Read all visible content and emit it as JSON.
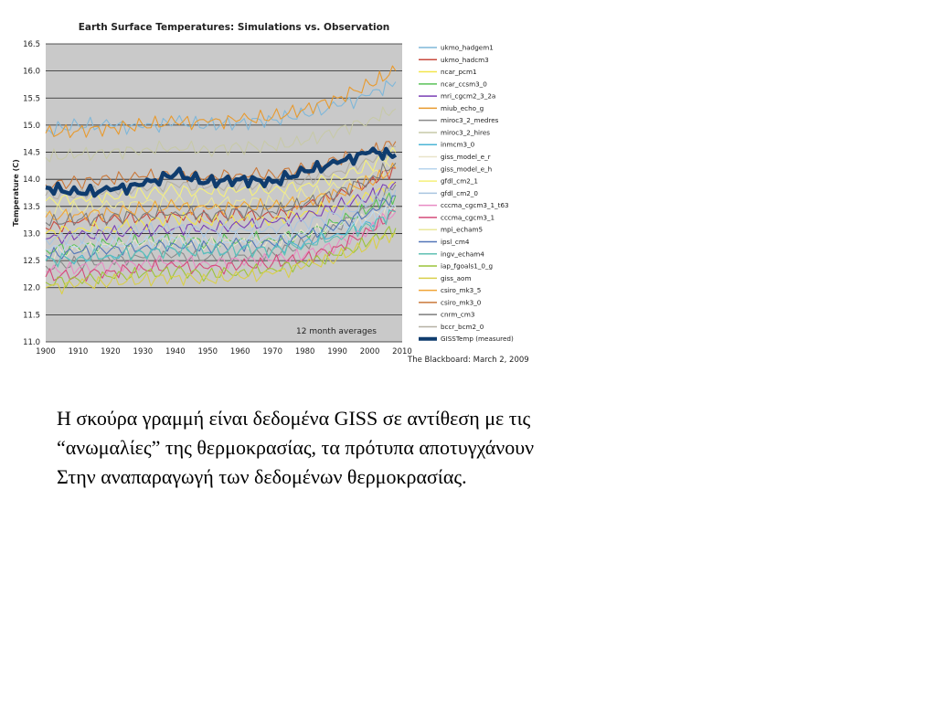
{
  "chart_data": {
    "type": "line",
    "title": "Earth Surface Temperatures: Simulations vs. Observation",
    "ylabel": "Temperature (C)",
    "xlabel": "",
    "ylim": [
      11.0,
      16.5
    ],
    "xlim": [
      1900,
      2010
    ],
    "x_ticks": [
      "1900",
      "1910",
      "1920",
      "1930",
      "1940",
      "1950",
      "1960",
      "1970",
      "1980",
      "1990",
      "2000",
      "2010"
    ],
    "y_ticks": [
      "11.0",
      "11.5",
      "12.0",
      "12.5",
      "13.0",
      "13.5",
      "14.0",
      "14.5",
      "15.0",
      "15.5",
      "16.0",
      "16.5"
    ],
    "x": [
      1900,
      1910,
      1920,
      1930,
      1940,
      1950,
      1960,
      1970,
      1980,
      1990,
      2000,
      2008
    ],
    "grid": true,
    "legend": "right",
    "annotation": "12 month averages",
    "source_note": "The Blackboard: March 2, 2009",
    "series": [
      {
        "name": "ukmo_hadgem1",
        "color": "#7fb7d9",
        "values": [
          14.9,
          15.0,
          15.0,
          14.95,
          15.05,
          15.0,
          15.05,
          15.1,
          15.2,
          15.35,
          15.55,
          15.8
        ]
      },
      {
        "name": "ukmo_hadcm3",
        "color": "#c84a3e",
        "values": [
          13.1,
          13.2,
          13.25,
          13.3,
          13.35,
          13.3,
          13.35,
          13.3,
          13.5,
          13.7,
          13.95,
          14.2
        ]
      },
      {
        "name": "ncar_pcm1",
        "color": "#f2e64a",
        "values": [
          13.0,
          13.1,
          13.1,
          13.2,
          13.3,
          13.2,
          13.25,
          13.25,
          13.4,
          13.5,
          13.7,
          13.9
        ]
      },
      {
        "name": "ncar_ccsm3_0",
        "color": "#59c257",
        "values": [
          12.7,
          12.75,
          12.8,
          12.85,
          12.9,
          12.85,
          12.9,
          12.9,
          13.0,
          13.2,
          13.45,
          13.7
        ]
      },
      {
        "name": "mri_cgcm2_3_2a",
        "color": "#7a3fb5",
        "values": [
          12.9,
          12.95,
          13.0,
          13.05,
          13.1,
          13.1,
          13.15,
          13.2,
          13.3,
          13.5,
          13.7,
          13.95
        ]
      },
      {
        "name": "miub_echo_g",
        "color": "#e89a2e",
        "values": [
          14.85,
          14.9,
          14.95,
          15.0,
          15.05,
          15.05,
          15.1,
          15.15,
          15.3,
          15.5,
          15.75,
          16.0
        ]
      },
      {
        "name": "miroc3_2_medres",
        "color": "#8a8a8a",
        "values": [
          12.4,
          12.45,
          12.5,
          12.55,
          12.6,
          12.55,
          12.6,
          12.65,
          12.8,
          13.1,
          13.5,
          13.9
        ]
      },
      {
        "name": "miroc3_2_hires",
        "color": "#c7c9a8",
        "values": [
          14.4,
          14.45,
          14.5,
          14.55,
          14.6,
          14.55,
          14.6,
          14.6,
          14.7,
          14.9,
          15.1,
          15.3
        ]
      },
      {
        "name": "inmcm3_0",
        "color": "#4bb5d6",
        "values": [
          12.5,
          12.55,
          12.6,
          12.65,
          12.7,
          12.65,
          12.7,
          12.7,
          12.85,
          13.0,
          13.2,
          13.4
        ]
      },
      {
        "name": "giss_model_e_r",
        "color": "#e9e4c9",
        "values": [
          12.6,
          12.7,
          12.75,
          12.8,
          12.85,
          12.8,
          12.85,
          12.85,
          13.0,
          13.15,
          13.3,
          13.5
        ]
      },
      {
        "name": "giss_model_e_h",
        "color": "#b7d4ee",
        "values": [
          12.7,
          12.75,
          12.8,
          12.85,
          12.9,
          12.85,
          12.9,
          12.9,
          13.0,
          13.1,
          13.3,
          13.5
        ]
      },
      {
        "name": "gfdl_cm2_1",
        "color": "#f5f07a",
        "values": [
          13.6,
          13.65,
          13.7,
          13.75,
          13.8,
          13.75,
          13.8,
          13.8,
          13.9,
          14.05,
          14.25,
          14.5
        ]
      },
      {
        "name": "gfdl_cm2_0",
        "color": "#a9c5e0",
        "values": [
          12.9,
          12.95,
          13.0,
          13.05,
          13.1,
          13.05,
          13.1,
          13.1,
          13.2,
          13.35,
          13.55,
          13.8
        ]
      },
      {
        "name": "cccma_cgcm3_1_t63",
        "color": "#e98bc4",
        "values": [
          12.3,
          12.35,
          12.4,
          12.45,
          12.5,
          12.45,
          12.5,
          12.5,
          12.6,
          12.8,
          13.1,
          13.4
        ]
      },
      {
        "name": "cccma_cgcm3_1",
        "color": "#d44b7a",
        "values": [
          12.2,
          12.25,
          12.3,
          12.35,
          12.4,
          12.35,
          12.4,
          12.45,
          12.55,
          12.75,
          13.05,
          13.4
        ]
      },
      {
        "name": "mpi_echam5",
        "color": "#eae79a",
        "values": [
          13.4,
          13.45,
          13.5,
          13.55,
          13.6,
          13.55,
          13.6,
          13.6,
          13.7,
          13.85,
          14.05,
          14.3
        ]
      },
      {
        "name": "ipsl_cm4",
        "color": "#5276b8",
        "values": [
          12.6,
          12.65,
          12.7,
          12.75,
          12.8,
          12.75,
          12.8,
          12.8,
          12.95,
          13.15,
          13.4,
          13.7
        ]
      },
      {
        "name": "ingv_echam4",
        "color": "#5fc0b3",
        "values": [
          12.5,
          12.55,
          12.6,
          12.65,
          12.7,
          12.65,
          12.7,
          12.7,
          12.8,
          12.95,
          13.15,
          13.4
        ]
      },
      {
        "name": "iap_fgoals1_0_g",
        "color": "#9cc43a",
        "values": [
          12.1,
          12.15,
          12.2,
          12.25,
          12.3,
          12.25,
          12.3,
          12.35,
          12.45,
          12.6,
          12.85,
          13.1
        ]
      },
      {
        "name": "giss_aom",
        "color": "#d9cf4a",
        "values": [
          12.0,
          12.05,
          12.1,
          12.15,
          12.2,
          12.15,
          12.2,
          12.25,
          12.4,
          12.55,
          12.8,
          13.0
        ]
      },
      {
        "name": "csiro_mk3_5",
        "color": "#f0a436",
        "values": [
          13.3,
          13.35,
          13.4,
          13.45,
          13.5,
          13.45,
          13.5,
          13.5,
          13.6,
          13.75,
          13.95,
          14.2
        ]
      },
      {
        "name": "csiro_mk3_0",
        "color": "#c9783a",
        "values": [
          13.9,
          13.95,
          14.0,
          14.05,
          14.1,
          14.05,
          14.1,
          14.1,
          14.2,
          14.35,
          14.5,
          14.7
        ]
      },
      {
        "name": "cnrm_cm3",
        "color": "#7b7b7b",
        "values": [
          13.2,
          13.25,
          13.3,
          13.35,
          13.4,
          13.35,
          13.4,
          13.4,
          13.55,
          13.75,
          14.0,
          14.3
        ]
      },
      {
        "name": "bccr_bcm2_0",
        "color": "#b5b0a3",
        "values": [
          13.7,
          13.75,
          13.8,
          13.85,
          13.9,
          13.85,
          13.9,
          13.9,
          14.0,
          14.15,
          14.35,
          14.6
        ]
      },
      {
        "name": "GISSTemp (measured)",
        "color": "#0f3c6e",
        "values": [
          13.85,
          13.75,
          13.8,
          13.9,
          14.1,
          13.95,
          14.0,
          13.95,
          14.15,
          14.3,
          14.5,
          14.45
        ]
      }
    ]
  },
  "caption": {
    "line1": "Η σκούρα γραμμή είναι δεδομένα GISS σε αντίθεση με τις",
    "line2": "“ανωμαλίες” της θερμοκρασίας, τα πρότυπα αποτυγχάνουν",
    "line3": "Στην αναπαραγωγή των δεδομένων θερμοκρασίας."
  }
}
